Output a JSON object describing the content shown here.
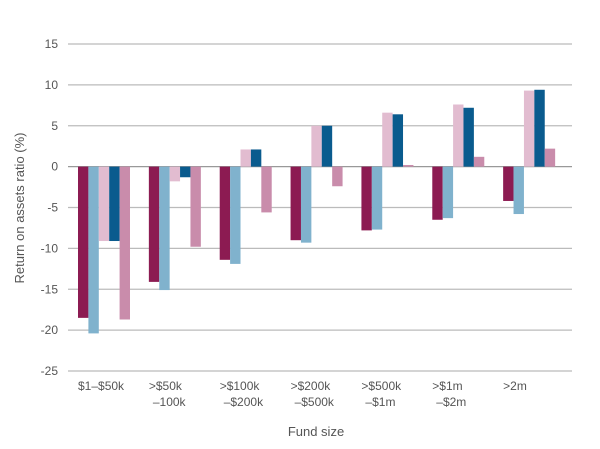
{
  "chart_data": {
    "type": "bar",
    "title": "",
    "xlabel": "Fund size",
    "ylabel": "Return on assets ratio (%)",
    "ylim": [
      -25,
      15
    ],
    "yticks": [
      15,
      10,
      5,
      0,
      -5,
      -10,
      -15,
      -20,
      -25
    ],
    "grid": true,
    "categories": [
      [
        "$1–$50k"
      ],
      [
        ">$50k",
        "–100k"
      ],
      [
        ">$100k",
        "–$200k"
      ],
      [
        ">$200k",
        "–$500k"
      ],
      [
        ">$500k",
        "–$1m"
      ],
      [
        ">$1m",
        "–$2m"
      ],
      [
        ">2m"
      ]
    ],
    "series": [
      {
        "color": "#8c1b52",
        "values": [
          -18.5,
          -14.1,
          -11.4,
          -9.0,
          -7.8,
          -6.5,
          -4.2
        ]
      },
      {
        "color": "#80b2cd",
        "values": [
          -20.4,
          -15.1,
          -11.9,
          -9.3,
          -7.7,
          -6.3,
          -5.8
        ]
      },
      {
        "color": "#e2bcd0",
        "values": [
          -9.1,
          -1.8,
          2.1,
          5.0,
          6.6,
          7.6,
          9.3
        ]
      },
      {
        "color": "#0a5b8e",
        "values": [
          -9.1,
          -1.3,
          2.1,
          5.0,
          6.4,
          7.2,
          9.4
        ]
      },
      {
        "color": "#c98cab",
        "values": [
          -18.7,
          -9.8,
          -5.6,
          -2.4,
          0.2,
          1.2,
          2.2
        ]
      }
    ]
  }
}
